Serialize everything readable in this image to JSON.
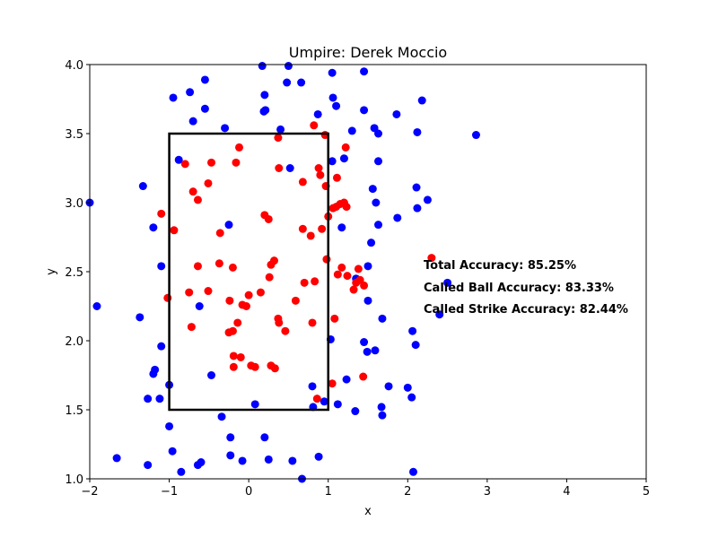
{
  "chart_data": {
    "type": "scatter",
    "title": "Umpire: Derek Moccio",
    "xlabel": "x",
    "ylabel": "y",
    "xlim": [
      -2,
      5
    ],
    "ylim": [
      1.0,
      4.0
    ],
    "xticks": [
      "−2",
      "−1",
      "0",
      "1",
      "2",
      "3",
      "4",
      "5"
    ],
    "yticks": [
      "1.0",
      "1.5",
      "2.0",
      "2.5",
      "3.0",
      "3.5",
      "4.0"
    ],
    "grid": false,
    "strike_zone": {
      "x": [
        -1,
        1
      ],
      "y": [
        1.5,
        3.5
      ]
    },
    "annotations": [
      "Total Accuracy: 85.25%",
      "Called Ball Accuracy: 83.33%",
      "Called Strike Accuracy: 82.44%"
    ],
    "colors": {
      "ball": "#0000ff",
      "strike": "#ff0000"
    },
    "series": [
      {
        "color": "#0000ff",
        "points": [
          [
            0.17,
            3.99
          ],
          [
            0.5,
            3.99
          ],
          [
            1.45,
            3.95
          ],
          [
            1.05,
            3.94
          ],
          [
            0.48,
            3.87
          ],
          [
            0.66,
            3.87
          ],
          [
            -0.55,
            3.89
          ],
          [
            -0.74,
            3.8
          ],
          [
            -0.95,
            3.76
          ],
          [
            0.2,
            3.78
          ],
          [
            1.06,
            3.76
          ],
          [
            2.18,
            3.74
          ],
          [
            1.1,
            3.7
          ],
          [
            -0.55,
            3.68
          ],
          [
            1.45,
            3.67
          ],
          [
            0.19,
            3.66
          ],
          [
            0.21,
            3.67
          ],
          [
            0.87,
            3.64
          ],
          [
            1.86,
            3.64
          ],
          [
            -0.7,
            3.59
          ],
          [
            -0.3,
            3.54
          ],
          [
            0.4,
            3.53
          ],
          [
            1.3,
            3.52
          ],
          [
            1.58,
            3.54
          ],
          [
            1.63,
            3.5
          ],
          [
            2.12,
            3.51
          ],
          [
            2.86,
            3.49
          ],
          [
            -0.88,
            3.31
          ],
          [
            0.52,
            3.25
          ],
          [
            1.05,
            3.3
          ],
          [
            1.2,
            3.32
          ],
          [
            1.63,
            3.3
          ],
          [
            -1.33,
            3.12
          ],
          [
            1.56,
            3.1
          ],
          [
            2.11,
            3.11
          ],
          [
            -2.0,
            3.0
          ],
          [
            1.6,
            3.0
          ],
          [
            2.25,
            3.02
          ],
          [
            2.12,
            2.96
          ],
          [
            1.87,
            2.89
          ],
          [
            -0.25,
            2.84
          ],
          [
            -1.2,
            2.82
          ],
          [
            1.63,
            2.84
          ],
          [
            1.17,
            2.82
          ],
          [
            1.54,
            2.71
          ],
          [
            -1.1,
            2.54
          ],
          [
            1.5,
            2.54
          ],
          [
            1.35,
            2.45
          ],
          [
            2.5,
            2.42
          ],
          [
            1.5,
            2.29
          ],
          [
            -0.62,
            2.25
          ],
          [
            -1.91,
            2.25
          ],
          [
            2.4,
            2.19
          ],
          [
            -1.37,
            2.17
          ],
          [
            1.68,
            2.16
          ],
          [
            2.06,
            2.07
          ],
          [
            1.03,
            2.01
          ],
          [
            1.45,
            1.99
          ],
          [
            1.59,
            1.93
          ],
          [
            1.49,
            1.92
          ],
          [
            2.1,
            1.97
          ],
          [
            -1.1,
            1.96
          ],
          [
            -1.2,
            1.76
          ],
          [
            -1.18,
            1.79
          ],
          [
            -0.47,
            1.75
          ],
          [
            0.8,
            1.67
          ],
          [
            1.23,
            1.72
          ],
          [
            1.76,
            1.67
          ],
          [
            -1.0,
            1.68
          ],
          [
            2.0,
            1.66
          ],
          [
            -1.27,
            1.58
          ],
          [
            -1.12,
            1.58
          ],
          [
            0.95,
            1.56
          ],
          [
            2.05,
            1.59
          ],
          [
            0.08,
            1.54
          ],
          [
            0.81,
            1.52
          ],
          [
            1.12,
            1.54
          ],
          [
            1.67,
            1.52
          ],
          [
            1.34,
            1.49
          ],
          [
            1.68,
            1.46
          ],
          [
            -0.34,
            1.45
          ],
          [
            -1.0,
            1.38
          ],
          [
            -0.23,
            1.3
          ],
          [
            0.2,
            1.3
          ],
          [
            -0.96,
            1.2
          ],
          [
            -0.23,
            1.17
          ],
          [
            0.25,
            1.14
          ],
          [
            0.55,
            1.13
          ],
          [
            0.88,
            1.16
          ],
          [
            -1.66,
            1.15
          ],
          [
            -1.27,
            1.1
          ],
          [
            -0.6,
            1.12
          ],
          [
            -0.64,
            1.1
          ],
          [
            -0.08,
            1.13
          ],
          [
            -0.85,
            1.05
          ],
          [
            0.67,
            1.0
          ],
          [
            2.07,
            1.05
          ]
        ]
      },
      {
        "color": "#ff0000",
        "points": [
          [
            0.82,
            3.56
          ],
          [
            0.37,
            3.47
          ],
          [
            0.96,
            3.49
          ],
          [
            -0.12,
            3.4
          ],
          [
            1.22,
            3.4
          ],
          [
            -0.8,
            3.28
          ],
          [
            -0.47,
            3.29
          ],
          [
            -0.16,
            3.29
          ],
          [
            0.38,
            3.25
          ],
          [
            0.88,
            3.25
          ],
          [
            0.9,
            3.2
          ],
          [
            1.11,
            3.18
          ],
          [
            -0.51,
            3.14
          ],
          [
            0.68,
            3.15
          ],
          [
            0.97,
            3.12
          ],
          [
            -0.7,
            3.08
          ],
          [
            -0.64,
            3.02
          ],
          [
            1.06,
            2.96
          ],
          [
            1.1,
            2.97
          ],
          [
            1.15,
            2.99
          ],
          [
            1.2,
            3.0
          ],
          [
            1.23,
            2.97
          ],
          [
            -1.1,
            2.92
          ],
          [
            0.2,
            2.91
          ],
          [
            0.25,
            2.88
          ],
          [
            1.0,
            2.9
          ],
          [
            -0.94,
            2.8
          ],
          [
            -0.36,
            2.78
          ],
          [
            0.68,
            2.81
          ],
          [
            0.78,
            2.76
          ],
          [
            0.92,
            2.81
          ],
          [
            2.3,
            2.6
          ],
          [
            0.32,
            2.58
          ],
          [
            0.98,
            2.59
          ],
          [
            -0.64,
            2.54
          ],
          [
            -0.37,
            2.56
          ],
          [
            -0.2,
            2.53
          ],
          [
            0.28,
            2.55
          ],
          [
            1.17,
            2.53
          ],
          [
            1.38,
            2.52
          ],
          [
            0.26,
            2.46
          ],
          [
            1.12,
            2.48
          ],
          [
            1.24,
            2.47
          ],
          [
            0.7,
            2.42
          ],
          [
            0.83,
            2.43
          ],
          [
            1.35,
            2.42
          ],
          [
            1.4,
            2.44
          ],
          [
            1.45,
            2.4
          ],
          [
            1.32,
            2.37
          ],
          [
            -0.75,
            2.35
          ],
          [
            -0.51,
            2.36
          ],
          [
            0.15,
            2.35
          ],
          [
            -1.02,
            2.31
          ],
          [
            -0.24,
            2.29
          ],
          [
            0.59,
            2.29
          ],
          [
            -0.08,
            2.26
          ],
          [
            -0.03,
            2.25
          ],
          [
            0.0,
            2.33
          ],
          [
            0.37,
            2.16
          ],
          [
            0.38,
            2.13
          ],
          [
            -0.14,
            2.13
          ],
          [
            -0.72,
            2.1
          ],
          [
            -0.25,
            2.06
          ],
          [
            -0.2,
            2.07
          ],
          [
            0.46,
            2.07
          ],
          [
            0.8,
            2.13
          ],
          [
            1.08,
            2.16
          ],
          [
            -0.19,
            1.89
          ],
          [
            -0.1,
            1.88
          ],
          [
            -0.19,
            1.81
          ],
          [
            0.03,
            1.82
          ],
          [
            0.08,
            1.81
          ],
          [
            0.28,
            1.82
          ],
          [
            0.33,
            1.8
          ],
          [
            1.44,
            1.74
          ],
          [
            1.05,
            1.69
          ],
          [
            0.86,
            1.58
          ]
        ]
      }
    ]
  }
}
